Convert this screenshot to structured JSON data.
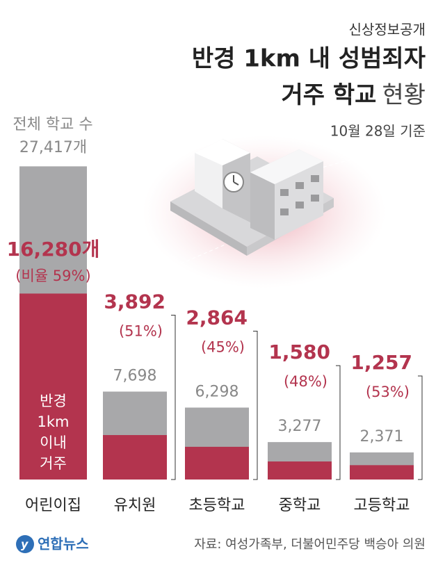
{
  "chart_data": {
    "type": "bar",
    "kicker": "신상정보공개",
    "title": [
      "반경 1km 내 성범죄자",
      "거주 학교"
    ],
    "title_suffix": "현황",
    "date_note": "10월 28일 기준",
    "total_caption": "전체 학교 수",
    "inner_label": [
      "반경",
      "1km",
      "이내",
      "거주"
    ],
    "categories": [
      "어린이집",
      "유치원",
      "초등학교",
      "중학교",
      "고등학교"
    ],
    "series": [
      {
        "name": "전체 학교 수",
        "color": "#a8a8aa",
        "values": [
          27417,
          7698,
          6298,
          3277,
          2371
        ],
        "value_labels": [
          "27,417개",
          "7,698",
          "6,298",
          "3,277",
          "2,371"
        ]
      },
      {
        "name": "반경 1km 이내 거주",
        "color": "#b3344e",
        "values": [
          16280,
          3892,
          2864,
          1580,
          1257
        ],
        "value_labels": [
          "16,280개",
          "3,892",
          "2,864",
          "1,580",
          "1,257"
        ]
      }
    ],
    "share": {
      "values": [
        59,
        51,
        45,
        48,
        53
      ],
      "value_labels": [
        "(비율 59%)",
        "(51%)",
        "(45%)",
        "(48%)",
        "(53%)"
      ]
    },
    "ylim": [
      0,
      27500
    ],
    "source": "자료: 여성가족부, 더불어민주당 백승아 의원",
    "logo": "연합뉴스"
  }
}
